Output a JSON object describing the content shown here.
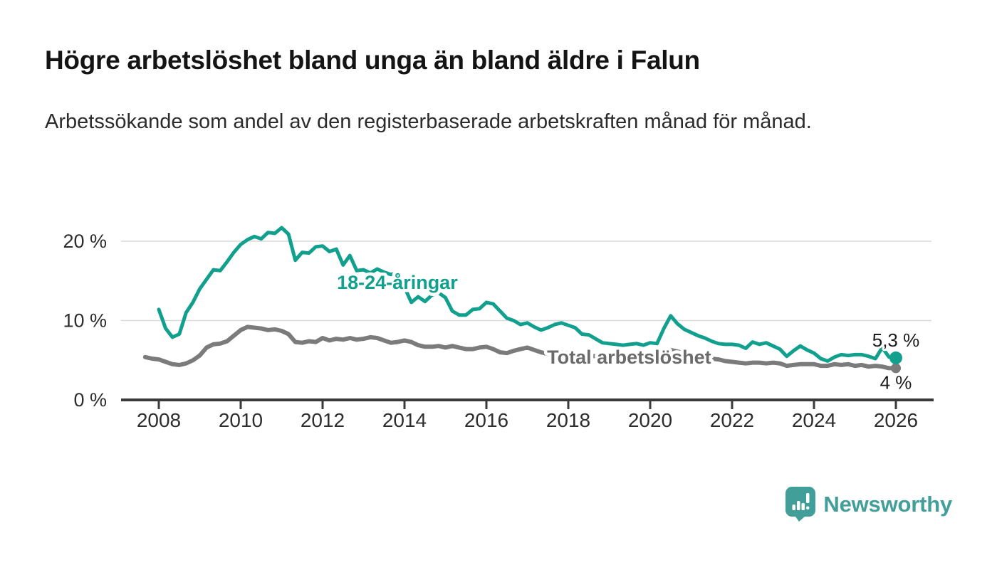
{
  "header": {
    "title": "Högre arbetslöshet bland unga än bland äldre i Falun",
    "subtitle": "Arbetssökande som andel av den registerbaserade arbetskraften månad för månad."
  },
  "chart_data": {
    "type": "line",
    "title": "Högre arbetslöshet bland unga än bland äldre i Falun",
    "subtitle": "Arbetssökande som andel av den registerbaserade arbetskraften månad för månad.",
    "unit": "%",
    "grid": "horizontal-only",
    "x_range": [
      2007.05,
      2026.9
    ],
    "y_range": [
      0,
      22.6
    ],
    "x_ticks": [
      2008,
      2010,
      2012,
      2014,
      2016,
      2018,
      2020,
      2022,
      2024,
      2026
    ],
    "y_ticks": [
      {
        "value": 0,
        "label": "0 %"
      },
      {
        "value": 10,
        "label": "10 %"
      },
      {
        "value": 20,
        "label": "20 %"
      }
    ],
    "y_gridlines": [
      10,
      20
    ],
    "series": [
      {
        "name": "18-24-åringar",
        "color": "#12a08e",
        "line_width": 5,
        "end_dot": true,
        "end_dot_radius": 9,
        "x_start": 2008.0,
        "x_step_months": 2,
        "values": [
          11.4,
          9.0,
          7.9,
          8.3,
          11.0,
          12.3,
          14.0,
          15.2,
          16.4,
          16.3,
          17.4,
          18.6,
          19.6,
          20.2,
          20.6,
          20.3,
          21.1,
          21.0,
          21.7,
          20.9,
          17.6,
          18.6,
          18.5,
          19.3,
          19.4,
          18.7,
          19.0,
          17.0,
          18.2,
          16.3,
          16.4,
          16.0,
          16.5,
          16.1,
          15.8,
          16.0,
          14.2,
          12.3,
          13.0,
          12.4,
          13.2,
          13.5,
          12.9,
          11.2,
          10.7,
          10.7,
          11.4,
          11.5,
          12.3,
          12.1,
          11.2,
          10.3,
          10.0,
          9.5,
          9.7,
          9.2,
          8.8,
          9.1,
          9.5,
          9.7,
          9.4,
          9.1,
          8.3,
          8.2,
          7.7,
          7.2,
          7.1,
          7.0,
          6.9,
          7.0,
          7.1,
          6.9,
          7.2,
          7.1,
          9.0,
          10.6,
          9.6,
          8.9,
          8.5,
          8.1,
          7.8,
          7.4,
          7.1,
          7.0,
          7.0,
          6.9,
          6.5,
          7.3,
          7.0,
          7.2,
          6.8,
          6.4,
          5.5,
          6.2,
          6.8,
          6.3,
          5.9,
          5.2,
          4.9,
          5.4,
          5.7,
          5.6,
          5.7,
          5.7,
          5.5,
          5.2,
          6.6,
          5.4,
          5.3
        ],
        "inline_label": {
          "text": "18-24-åringar",
          "x": 2012.35,
          "y": 14.0,
          "color": "#12a08e"
        },
        "end_label": {
          "text": "5,3 %",
          "position": "above"
        }
      },
      {
        "name": "Total arbetslöshet",
        "color": "#7b7b7b",
        "line_width": 6,
        "end_dot": true,
        "end_dot_radius": 7,
        "x_start": 2007.667,
        "x_step_months": 2,
        "values": [
          5.4,
          5.2,
          5.1,
          4.8,
          4.5,
          4.4,
          4.6,
          5.0,
          5.6,
          6.6,
          7.0,
          7.1,
          7.4,
          8.1,
          8.8,
          9.2,
          9.1,
          9.0,
          8.8,
          8.9,
          8.7,
          8.3,
          7.3,
          7.2,
          7.4,
          7.3,
          7.8,
          7.5,
          7.7,
          7.6,
          7.8,
          7.6,
          7.7,
          7.9,
          7.8,
          7.5,
          7.2,
          7.3,
          7.5,
          7.3,
          6.9,
          6.7,
          6.7,
          6.8,
          6.6,
          6.8,
          6.6,
          6.4,
          6.4,
          6.6,
          6.7,
          6.4,
          6.0,
          5.9,
          6.2,
          6.4,
          6.6,
          6.3,
          6.0,
          5.8,
          5.9,
          6.0,
          5.9,
          5.8,
          5.7,
          5.6,
          5.5,
          5.4,
          5.4,
          5.3,
          5.2,
          5.2,
          5.3,
          5.3,
          5.5,
          5.9,
          6.2,
          6.3,
          6.1,
          5.9,
          5.7,
          5.5,
          5.4,
          5.2,
          5.1,
          4.9,
          4.8,
          4.7,
          4.6,
          4.7,
          4.7,
          4.6,
          4.7,
          4.6,
          4.3,
          4.4,
          4.5,
          4.5,
          4.5,
          4.3,
          4.3,
          4.5,
          4.4,
          4.5,
          4.3,
          4.4,
          4.2,
          4.3,
          4.2,
          4.0,
          4.0
        ],
        "inline_label": {
          "text": "Total arbetslöshet",
          "x": 2017.48,
          "y": 4.57,
          "color": "#6b6b6b"
        },
        "end_label": {
          "text": "4 %",
          "position": "below"
        }
      }
    ],
    "colors": {
      "axis": "#3a3a3a",
      "gridline": "#d9d9d9",
      "tick_text": "#2d2d2d",
      "end_label_text": "#1c1c1c"
    }
  },
  "footer": {
    "brand": "Newsworthy",
    "brand_color": "#419e99",
    "logo_icon": "speech-bubble-bar-chart-icon"
  }
}
